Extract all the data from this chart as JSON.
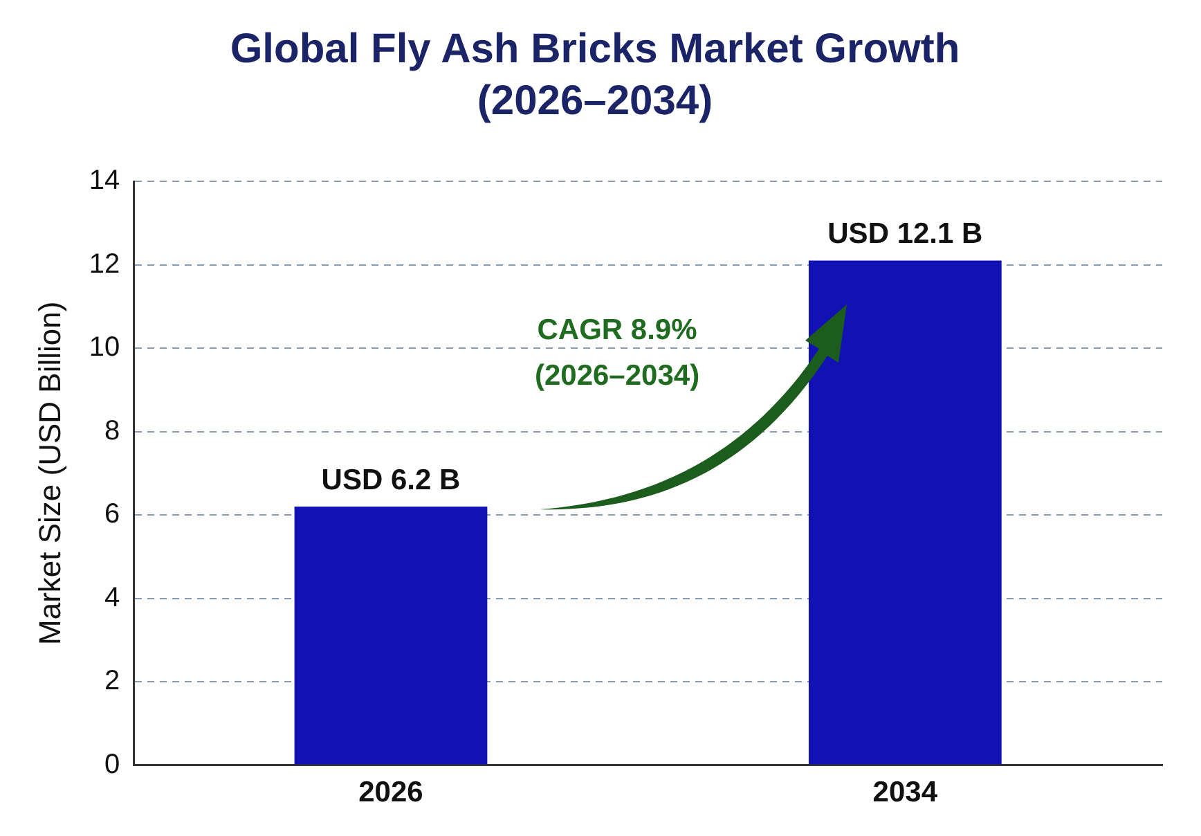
{
  "chart_data": {
    "type": "bar",
    "title": "Global Fly Ash Bricks Market Growth (2026–2034)",
    "ylabel": "Market Size (USD Billion)",
    "categories": [
      "2026",
      "2034"
    ],
    "values": [
      6.2,
      12.1
    ],
    "color": "#1212b4",
    "value_labels": [
      "USD 6.2 B",
      "USD 12.1 B"
    ],
    "annotations": [
      "CAGR 8.9%",
      "(2026–2034)"
    ],
    "ylim": [
      0,
      14
    ],
    "yticks": [
      0,
      2,
      4,
      6,
      8,
      10,
      12,
      14
    ],
    "grid": "y",
    "legend": false
  }
}
